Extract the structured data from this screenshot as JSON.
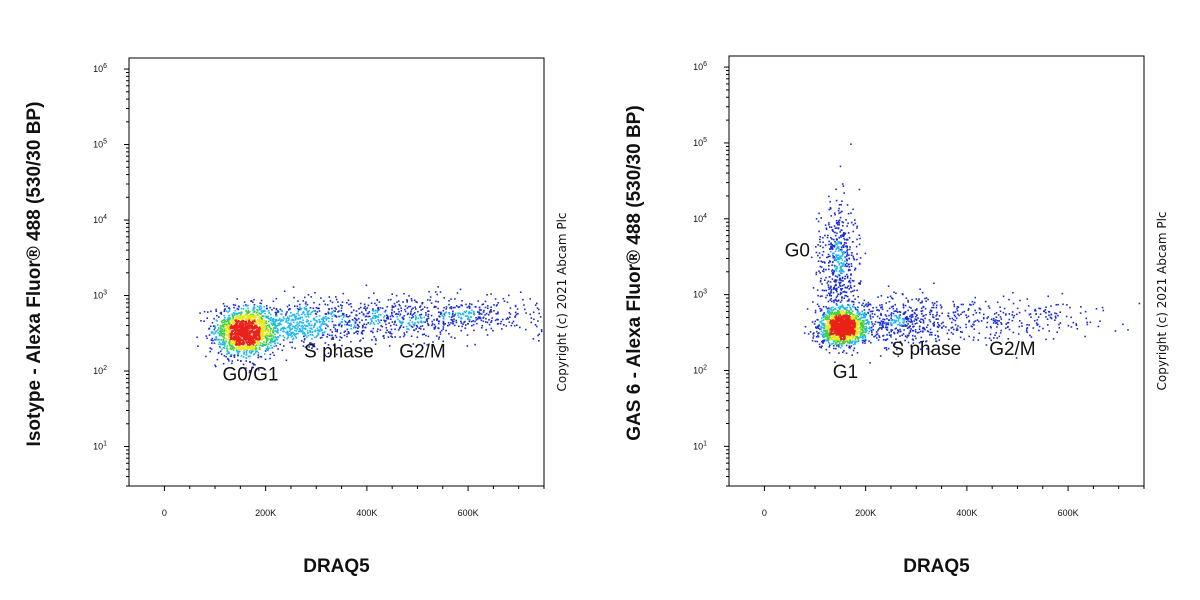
{
  "copyright": "Copyright (c) 2021 Abcam Plc",
  "colors": {
    "low": "#1a2bd6",
    "mid_low": "#19b8f0",
    "mid": "#3fd23f",
    "mid_high": "#e8e81a",
    "high": "#e8221a"
  },
  "chart_data": [
    {
      "type": "scatter",
      "density_coloring": true,
      "title": "",
      "xlabel": "DRAQ5",
      "ylabel": "Isotype - Alexa Fluor® 488 (530/30 BP)",
      "xlim": [
        -70000,
        750000
      ],
      "ylim": [
        3,
        1400000
      ],
      "yscale": "log",
      "xticks": [
        {
          "value": 0,
          "label": "0"
        },
        {
          "value": 200000,
          "label": "200K"
        },
        {
          "value": 400000,
          "label": "400K"
        },
        {
          "value": 600000,
          "label": "600K"
        }
      ],
      "yticks": [
        {
          "value": 10,
          "base": "10",
          "exp": "1"
        },
        {
          "value": 100,
          "base": "10",
          "exp": "2"
        },
        {
          "value": 1000,
          "base": "10",
          "exp": "3"
        },
        {
          "value": 10000,
          "base": "10",
          "exp": "4"
        },
        {
          "value": 100000,
          "base": "10",
          "exp": "5"
        },
        {
          "value": 1000000,
          "base": "10",
          "exp": "6"
        }
      ],
      "populations": [
        {
          "x": 160000,
          "y": 330,
          "sx": 30000,
          "sy": 0.16,
          "n": 1500
        },
        {
          "x": 270000,
          "y": 420,
          "sx": 50000,
          "sy": 0.15,
          "n": 500
        },
        {
          "x": 460000,
          "y": 500,
          "sx": 90000,
          "sy": 0.14,
          "n": 550
        },
        {
          "x": 640000,
          "y": 540,
          "sx": 70000,
          "sy": 0.13,
          "n": 200
        }
      ],
      "annotations": [
        {
          "text": "G0/G1",
          "x": 170000,
          "y": 75
        },
        {
          "text": "S phase",
          "x": 345000,
          "y": 150
        },
        {
          "text": "G2/M",
          "x": 510000,
          "y": 150
        }
      ]
    },
    {
      "type": "scatter",
      "density_coloring": true,
      "title": "",
      "xlabel": "DRAQ5",
      "ylabel": "GAS 6 - Alexa Fluor® 488 (530/30 BP)",
      "xlim": [
        -70000,
        750000
      ],
      "ylim": [
        3,
        1400000
      ],
      "yscale": "log",
      "xticks": [
        {
          "value": 0,
          "label": "0"
        },
        {
          "value": 200000,
          "label": "200K"
        },
        {
          "value": 400000,
          "label": "400K"
        },
        {
          "value": 600000,
          "label": "600K"
        }
      ],
      "yticks": [
        {
          "value": 10,
          "base": "10",
          "exp": "1"
        },
        {
          "value": 100,
          "base": "10",
          "exp": "2"
        },
        {
          "value": 1000,
          "base": "10",
          "exp": "3"
        },
        {
          "value": 10000,
          "base": "10",
          "exp": "4"
        },
        {
          "value": 100000,
          "base": "10",
          "exp": "5"
        },
        {
          "value": 1000000,
          "base": "10",
          "exp": "6"
        }
      ],
      "populations": [
        {
          "x": 155000,
          "y": 370,
          "sx": 22000,
          "sy": 0.12,
          "n": 1400
        },
        {
          "x": 145000,
          "y": 2500,
          "sx": 20000,
          "sy": 0.38,
          "n": 550
        },
        {
          "x": 260000,
          "y": 450,
          "sx": 55000,
          "sy": 0.16,
          "n": 450
        },
        {
          "x": 450000,
          "y": 480,
          "sx": 110000,
          "sy": 0.16,
          "n": 300
        }
      ],
      "annotations": [
        {
          "text": "G0",
          "x": 65000,
          "y": 3200
        },
        {
          "text": "G1",
          "x": 160000,
          "y": 80
        },
        {
          "text": "S phase",
          "x": 320000,
          "y": 160
        },
        {
          "text": "G2/M",
          "x": 490000,
          "y": 160
        }
      ]
    }
  ]
}
